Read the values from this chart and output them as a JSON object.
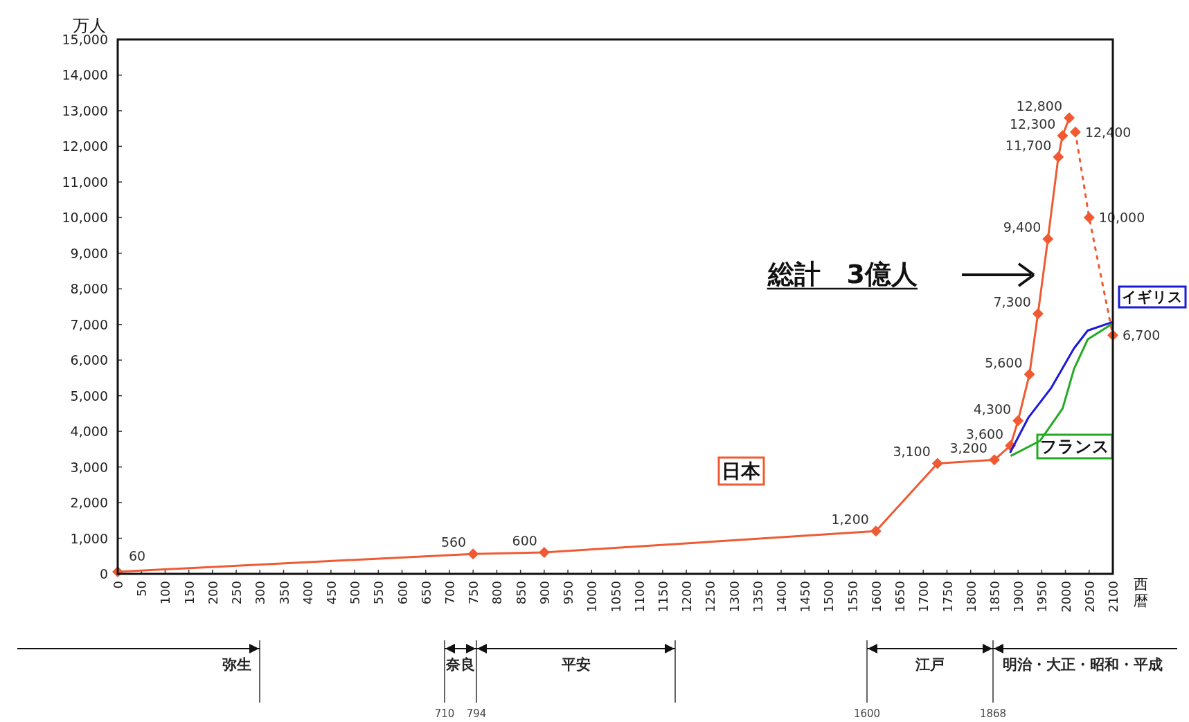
{
  "chart_data": {
    "type": "line",
    "ylabel": "万人",
    "xlabel": "西暦",
    "xlim": [
      0,
      2100
    ],
    "xticks": [
      0,
      50,
      100,
      150,
      200,
      250,
      300,
      350,
      400,
      450,
      500,
      550,
      600,
      650,
      700,
      750,
      800,
      850,
      900,
      950,
      1000,
      1050,
      1100,
      1150,
      1200,
      1250,
      1300,
      1350,
      1400,
      1450,
      1500,
      1550,
      1600,
      1650,
      1700,
      1750,
      1800,
      1850,
      1900,
      1950,
      2000,
      2050,
      2100
    ],
    "ylim": [
      0,
      15000
    ],
    "yticks": [
      0,
      {
        "value": 1000,
        "label": "1,000"
      },
      {
        "value": 2000,
        "label": "2,000"
      },
      {
        "value": 3000,
        "label": "3,000"
      },
      {
        "value": 4000,
        "label": "4,000"
      },
      {
        "value": 5000,
        "label": "5,000"
      },
      {
        "value": 6000,
        "label": "6,000"
      },
      {
        "value": 7000,
        "label": "7,000"
      },
      {
        "value": 8000,
        "label": "8,000"
      },
      {
        "value": 9000,
        "label": "9,000"
      },
      {
        "value": 10000,
        "label": "10,000"
      },
      {
        "value": 11000,
        "label": "11,000"
      },
      {
        "value": 12000,
        "label": "12,000"
      },
      {
        "value": 13000,
        "label": "13,000"
      },
      {
        "value": 14000,
        "label": "14,000"
      },
      {
        "value": 15000,
        "label": "15,000"
      }
    ],
    "series": [
      {
        "name": "日本",
        "color": "#f05a32",
        "marker": "diamond",
        "line_style": "solid",
        "x": [
          0,
          750,
          900,
          1600,
          1730,
          1850,
          1884,
          1900,
          1924,
          1942,
          1963,
          1985,
          1994,
          2008
        ],
        "values": [
          60,
          560,
          600,
          1200,
          3100,
          3200,
          3600,
          4300,
          5600,
          7300,
          9400,
          11700,
          12300,
          12800
        ],
        "value_labels": [
          "60",
          "560",
          "600",
          "1,200",
          "3,100",
          "3,200",
          "3,600",
          "4,300",
          "5,600",
          "7,300",
          "9,400",
          "11,700",
          "12,300",
          "12,800"
        ]
      },
      {
        "color": "#f05a32",
        "marker": "diamond",
        "line_style": "dotted",
        "x": [
          2021,
          2050,
          2100
        ],
        "values": [
          12400,
          10000,
          6700
        ],
        "value_labels": [
          "12,400",
          "10,000",
          "6,700"
        ]
      },
      {
        "name": "イギリス",
        "color": "#1a1ad8",
        "marker": "none",
        "line_style": "solid",
        "x": [
          1884,
          1922,
          1970,
          2018,
          2047,
          2100
        ],
        "values": [
          3420,
          4390,
          5220,
          6330,
          6830,
          7070
        ]
      },
      {
        "name": "フランス",
        "color": "#22aa22",
        "marker": "none",
        "line_style": "solid",
        "x": [
          1886,
          1946,
          1994,
          2018,
          2047,
          2100
        ],
        "values": [
          3320,
          3730,
          4640,
          5750,
          6580,
          7030
        ]
      }
    ],
    "annotations": [
      "総計　3億人",
      "弥生",
      "奈良",
      "平安",
      "江戸",
      "明治・大正・昭和・平成",
      "710",
      "794",
      "1600",
      "1868"
    ],
    "grid": false
  }
}
